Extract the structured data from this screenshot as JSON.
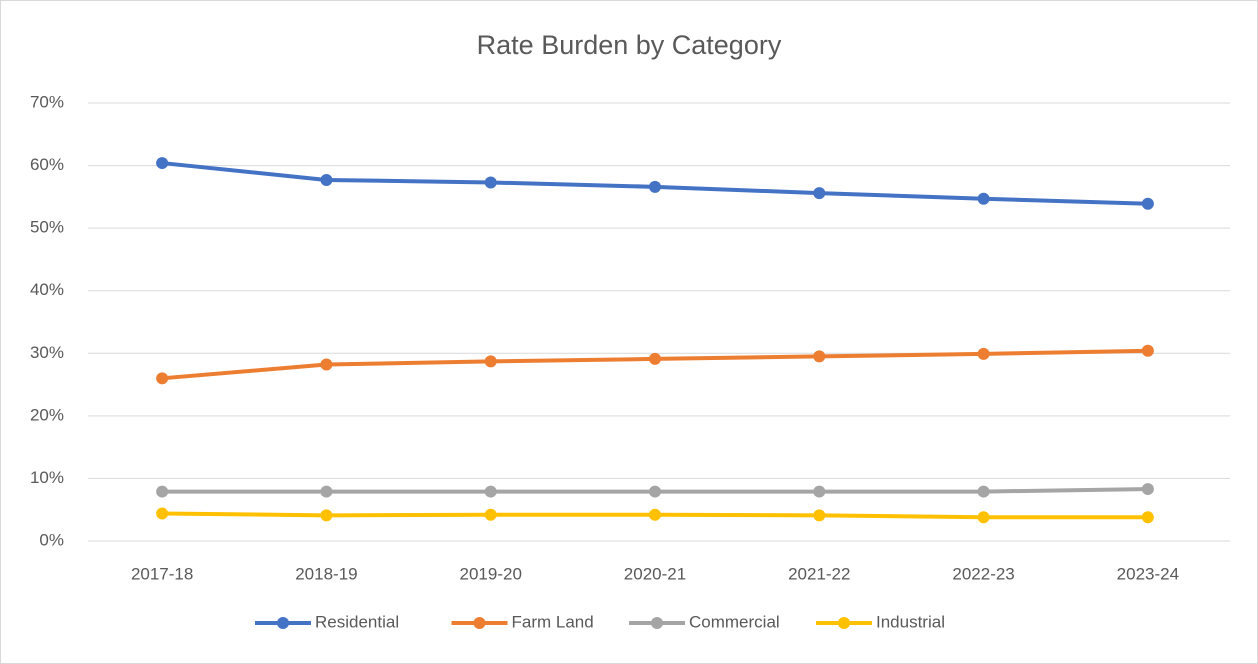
{
  "chart_data": {
    "type": "line",
    "title": "Rate Burden by Category",
    "categories": [
      "2017-18",
      "2018-19",
      "2019-20",
      "2020-21",
      "2021-22",
      "2022-23",
      "2023-24"
    ],
    "series": [
      {
        "name": "Residential",
        "color": "#4472c4",
        "values": [
          60.4,
          57.7,
          57.3,
          56.6,
          55.6,
          54.7,
          53.9
        ]
      },
      {
        "name": "Farm Land",
        "color": "#ed7d31",
        "values": [
          26.0,
          28.2,
          28.7,
          29.1,
          29.5,
          29.9,
          30.4
        ]
      },
      {
        "name": "Commercial",
        "color": "#a5a5a5",
        "values": [
          7.9,
          7.9,
          7.9,
          7.9,
          7.9,
          7.9,
          8.3
        ]
      },
      {
        "name": "Industrial",
        "color": "#ffc000",
        "values": [
          4.4,
          4.1,
          4.2,
          4.2,
          4.1,
          3.8,
          3.8
        ]
      }
    ],
    "ylim": [
      0,
      70
    ],
    "yticks": [
      {
        "value": 0,
        "label": "0%"
      },
      {
        "value": 10,
        "label": "10%"
      },
      {
        "value": 20,
        "label": "20%"
      },
      {
        "value": 30,
        "label": "30%"
      },
      {
        "value": 40,
        "label": "40%"
      },
      {
        "value": 50,
        "label": "50%"
      },
      {
        "value": 60,
        "label": "60%"
      },
      {
        "value": 70,
        "label": "70%"
      }
    ],
    "grid": true,
    "legend": "bottom"
  }
}
